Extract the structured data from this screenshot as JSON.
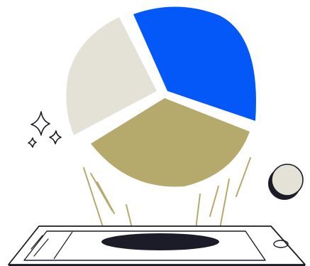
{
  "illustration": {
    "subject": "pie-chart-hologram-over-phone",
    "pie_slices": [
      {
        "name": "blue-slice",
        "color": "#0558f8"
      },
      {
        "name": "gold-slice",
        "color": "#b5a96c"
      },
      {
        "name": "grey-slice",
        "color": "#e4e1d6"
      }
    ],
    "colors": {
      "outline": "#1c1c28",
      "ray": "#b5a96c",
      "coin_fill": "#e4e1d6",
      "coin_shadow": "#1c1c28",
      "background": "#ffffff"
    },
    "icons": [
      "sparkle-icon",
      "coin-icon",
      "smartphone-icon"
    ]
  }
}
